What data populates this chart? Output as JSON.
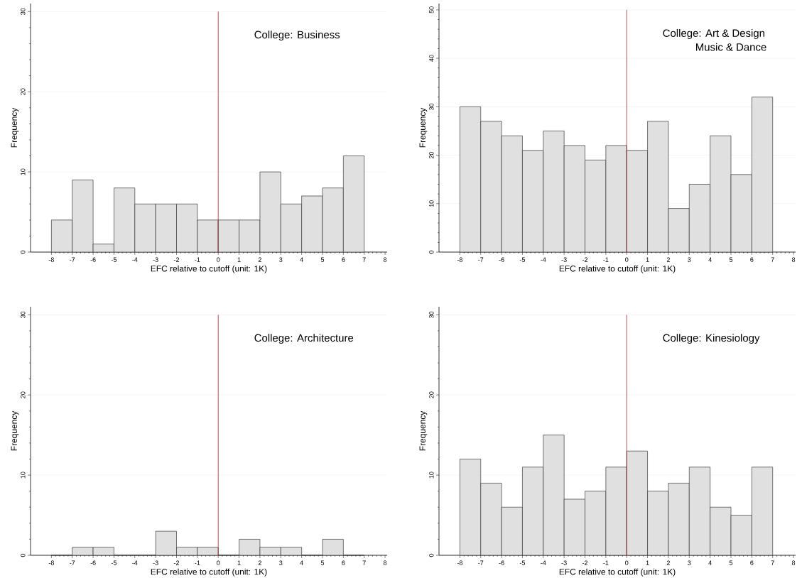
{
  "chart_data": [
    {
      "type": "histogram",
      "bins": [
        -8,
        -7,
        -6,
        -5,
        -4,
        -3,
        -2,
        -1,
        0,
        1,
        2,
        3,
        4,
        5,
        6,
        7
      ],
      "values": [
        4,
        9,
        1,
        8,
        6,
        6,
        6,
        4,
        4,
        4,
        10,
        6,
        7,
        8,
        12
      ],
      "color": "#e0e0e0",
      "xlabel": "EFC relative to cutoff (unit: 1K)",
      "ylabel": "Frequency",
      "xlim": [
        -9,
        8.1
      ],
      "xticks": [
        -8,
        -7,
        -6,
        -5,
        -4,
        -3,
        -2,
        -1,
        0,
        1,
        2,
        3,
        4,
        5,
        6,
        7,
        8
      ],
      "ylim": [
        0,
        31
      ],
      "yticks": [
        0,
        10,
        20,
        30
      ],
      "grid": "y",
      "ref_lines": [
        {
          "axis": "x",
          "value": 0,
          "color": "#a0282d"
        }
      ],
      "annotations": [
        "College: Business"
      ]
    },
    {
      "type": "histogram",
      "bins": [
        -8,
        -7,
        -6,
        -5,
        -4,
        -3,
        -2,
        -1,
        0,
        1,
        2,
        3,
        4,
        5,
        6,
        7
      ],
      "values": [
        30,
        27,
        24,
        21,
        25,
        22,
        19,
        22,
        21,
        27,
        9,
        14,
        24,
        16,
        32
      ],
      "color": "#e0e0e0",
      "xlabel": "EFC relative to cutoff (unit: 1K)",
      "ylabel": "Frequency",
      "xlim": [
        -9,
        8.1
      ],
      "xticks": [
        -8,
        -7,
        -6,
        -5,
        -4,
        -3,
        -2,
        -1,
        0,
        1,
        2,
        3,
        4,
        5,
        6,
        7,
        8
      ],
      "ylim": [
        0,
        51.3
      ],
      "yticks": [
        0,
        10,
        20,
        30,
        40,
        50
      ],
      "grid": "y",
      "ref_lines": [
        {
          "axis": "x",
          "value": 0,
          "color": "#a0282d"
        }
      ],
      "annotations": [
        "College: Art & Design",
        "Music & Dance"
      ]
    },
    {
      "type": "histogram",
      "bins": [
        -8,
        -7,
        -6,
        -5,
        -4,
        -3,
        -2,
        -1,
        0,
        1,
        2,
        3,
        4,
        5,
        6,
        7
      ],
      "values": [
        0,
        1,
        1,
        0,
        0,
        3,
        1,
        1,
        0,
        2,
        1,
        1,
        0,
        2,
        0
      ],
      "color": "#e0e0e0",
      "xlabel": "EFC relative to cutoff (unit: 1K)",
      "ylabel": "Frequency",
      "xlim": [
        -9,
        8.1
      ],
      "xticks": [
        -8,
        -7,
        -6,
        -5,
        -4,
        -3,
        -2,
        -1,
        0,
        1,
        2,
        3,
        4,
        5,
        6,
        7,
        8
      ],
      "ylim": [
        0,
        31
      ],
      "yticks": [
        0,
        10,
        20,
        30
      ],
      "grid": "y",
      "ref_lines": [
        {
          "axis": "x",
          "value": 0,
          "color": "#a0282d"
        }
      ],
      "annotations": [
        "College: Architecture"
      ]
    },
    {
      "type": "histogram",
      "bins": [
        -8,
        -7,
        -6,
        -5,
        -4,
        -3,
        -2,
        -1,
        0,
        1,
        2,
        3,
        4,
        5,
        6,
        7
      ],
      "values": [
        12,
        9,
        6,
        11,
        15,
        7,
        8,
        11,
        13,
        8,
        9,
        11,
        6,
        5,
        11
      ],
      "color": "#e0e0e0",
      "xlabel": "EFC relative to cutoff (unit: 1K)",
      "ylabel": "Frequency",
      "xlim": [
        -9,
        8.1
      ],
      "xticks": [
        -8,
        -7,
        -6,
        -5,
        -4,
        -3,
        -2,
        -1,
        0,
        1,
        2,
        3,
        4,
        5,
        6,
        7,
        8
      ],
      "ylim": [
        0,
        31
      ],
      "yticks": [
        0,
        10,
        20,
        30
      ],
      "grid": "y",
      "ref_lines": [
        {
          "axis": "x",
          "value": 0,
          "color": "#a0282d"
        }
      ],
      "annotations": [
        "College: Kinesiology"
      ]
    }
  ]
}
